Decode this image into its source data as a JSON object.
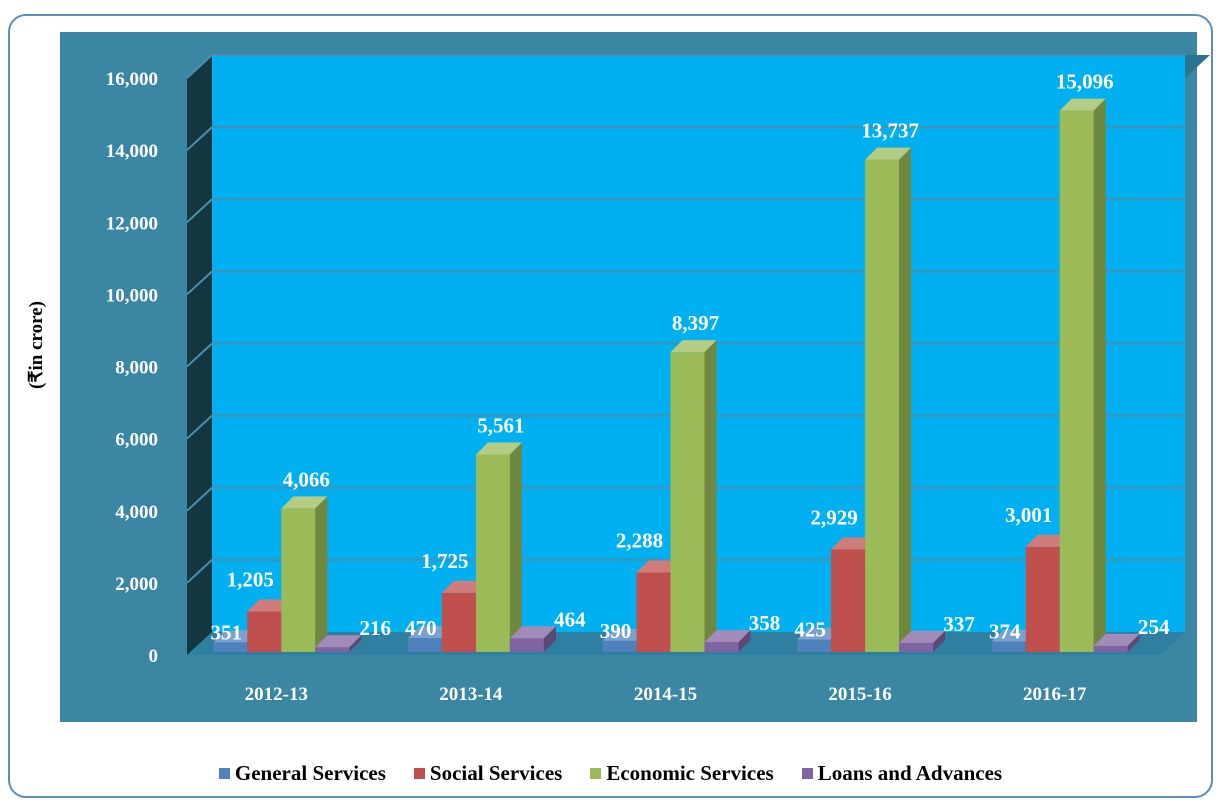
{
  "chart_data": {
    "type": "bar",
    "ylabel": "(₹in crore)",
    "ylim": [
      0,
      16000
    ],
    "yticks": [
      "0",
      "2,000",
      "4,000",
      "6,000",
      "8,000",
      "10,000",
      "12,000",
      "14,000",
      "16,000"
    ],
    "categories": [
      "2012-13",
      "2013-14",
      "2014-15",
      "2015-16",
      "2016-17"
    ],
    "series": [
      {
        "name": "General Services",
        "color": "#4f81bd",
        "values": [
          351,
          470,
          390,
          425,
          374
        ],
        "labels": [
          "351",
          "470",
          "390",
          "425",
          "374"
        ]
      },
      {
        "name": "Social Services",
        "color": "#c0504d",
        "values": [
          1205,
          1725,
          2288,
          2929,
          3001
        ],
        "labels": [
          "1,205",
          "1,725",
          "2,288",
          "2,929",
          "3,001"
        ]
      },
      {
        "name": "Economic Services",
        "color": "#9bbb59",
        "values": [
          4066,
          5561,
          8397,
          13737,
          15096
        ],
        "labels": [
          "4,066",
          "5,561",
          "8,397",
          "13,737",
          "15,096"
        ]
      },
      {
        "name": "Loans and Advances",
        "color": "#8064a2",
        "values": [
          216,
          464,
          358,
          337,
          254
        ],
        "labels": [
          "216",
          "464",
          "358",
          "337",
          "254"
        ]
      }
    ],
    "grid": true,
    "legend": "bottom",
    "style": "3d-column"
  }
}
